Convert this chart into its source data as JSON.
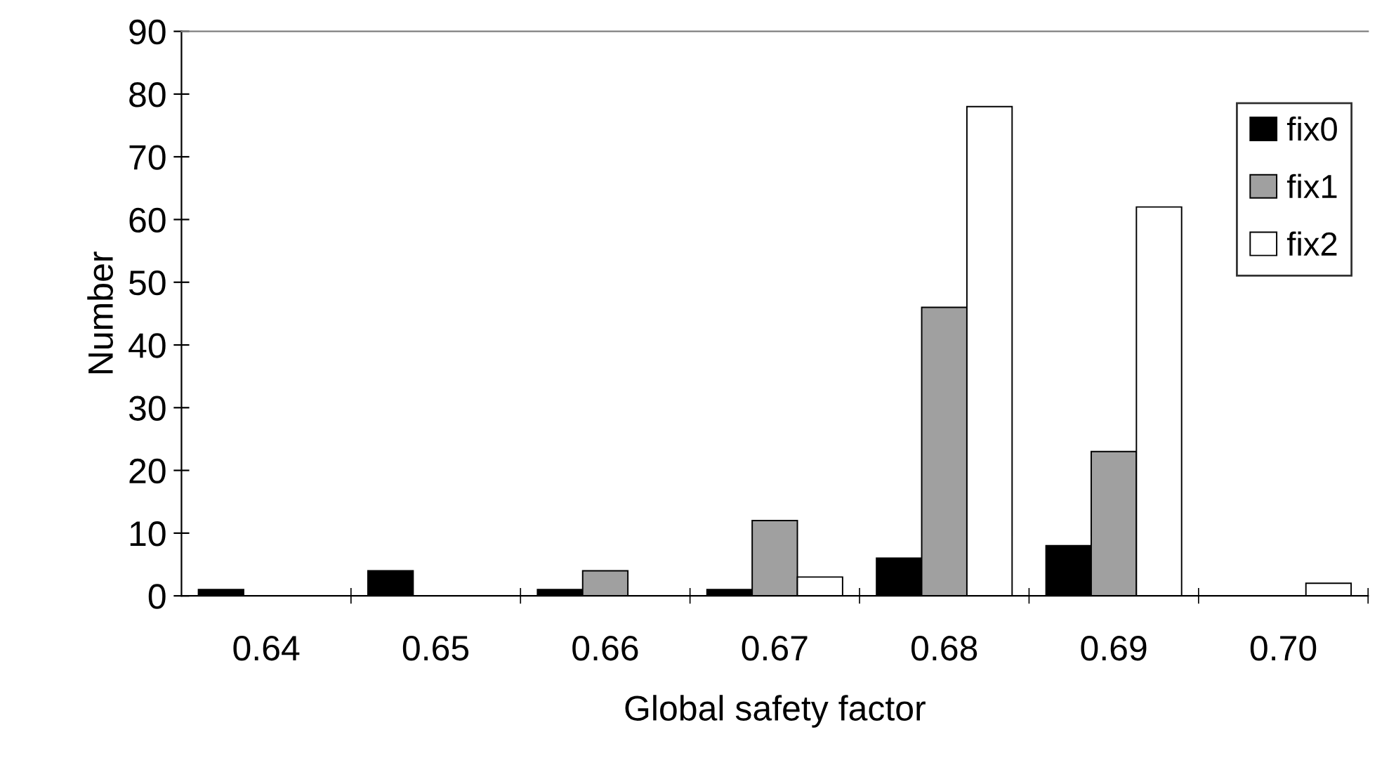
{
  "chart_data": {
    "type": "bar",
    "xlabel": "Global safety factor",
    "ylabel": "Number",
    "categories": [
      "0.64",
      "0.65",
      "0.66",
      "0.67",
      "0.68",
      "0.69",
      "0.70"
    ],
    "series": [
      {
        "name": "fix0",
        "color": "#000000",
        "values": [
          1,
          4,
          1,
          1,
          6,
          8,
          null
        ]
      },
      {
        "name": "fix1",
        "color": "#a0a0a0",
        "values": [
          null,
          null,
          4,
          12,
          46,
          23,
          null
        ]
      },
      {
        "name": "fix2",
        "color": "#ffffff",
        "values": [
          null,
          null,
          null,
          3,
          78,
          62,
          2
        ]
      }
    ],
    "ylim": [
      0,
      90
    ],
    "yticks": [
      0,
      10,
      20,
      30,
      40,
      50,
      60,
      70,
      80,
      90
    ],
    "grid": false,
    "legend": "right"
  }
}
